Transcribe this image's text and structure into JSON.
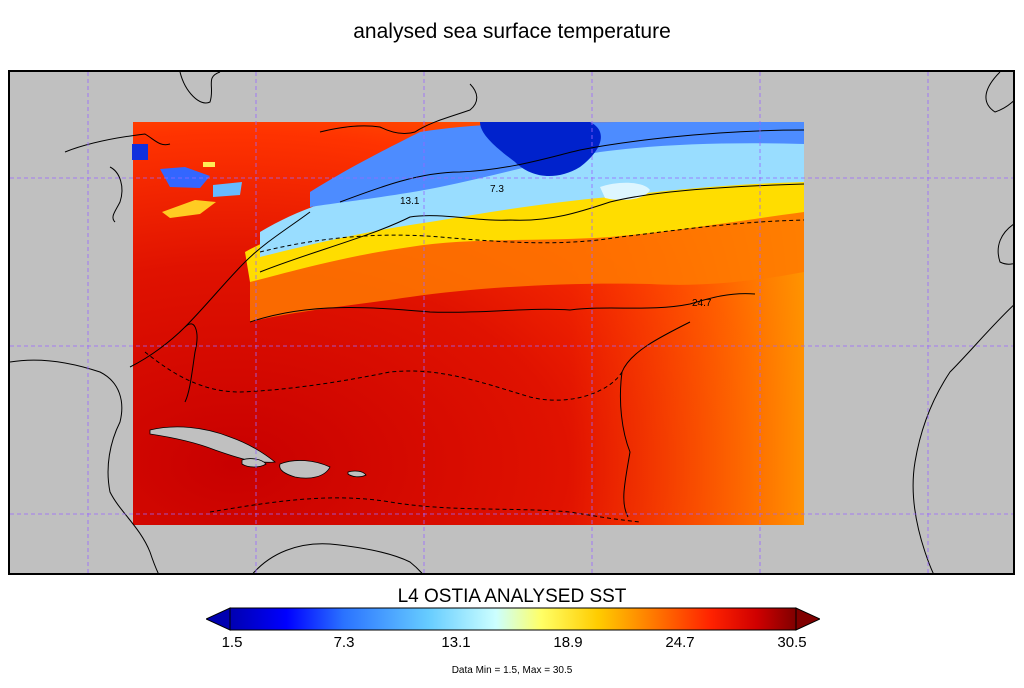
{
  "title": "analysed sea surface temperature",
  "map": {
    "colorbar_title": "L4 OSTIA ANALYSED SST",
    "colorbar_ticks": [
      "1.5",
      "7.3",
      "13.1",
      "18.9",
      "24.7",
      "30.5"
    ],
    "colorbar_stops": [
      "#0000b0",
      "#0000ff",
      "#2a72ff",
      "#66ccff",
      "#ccffff",
      "#ffff66",
      "#ffcc00",
      "#ff7700",
      "#ff2200",
      "#d00000",
      "#800000"
    ],
    "contour_labels": [
      "7.3",
      "13.1",
      "24.7"
    ],
    "data_stats": "Data Min = 1.5, Max = 30.5",
    "land_color": "#c0c0c0",
    "graticule_color": "#9966ff"
  }
}
